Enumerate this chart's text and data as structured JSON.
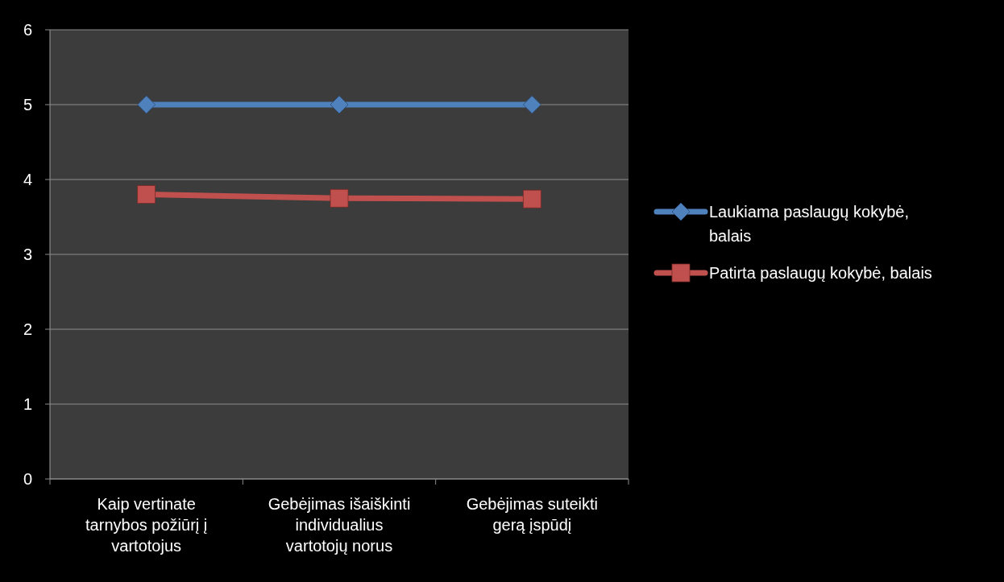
{
  "chart_data": {
    "type": "line",
    "categories": [
      "Kaip vertinate tarnybos požiūrį į vartotojus",
      "Gebėjimas išaiškinti individualius vartotojų norus",
      "Gebėjimas suteikti gerą įspūdį"
    ],
    "series": [
      {
        "name": "Laukiama paslaugų kokybė, balais",
        "color": "#4f81bd",
        "marker": "diamond",
        "values": [
          5,
          5,
          5
        ]
      },
      {
        "name": "Patirta paslaugų kokybė, balais",
        "color": "#c0504d",
        "marker": "square",
        "values": [
          3.8,
          3.75,
          3.74
        ]
      }
    ],
    "ylim": [
      0,
      6
    ],
    "yticks": [
      0,
      1,
      2,
      3,
      4,
      5,
      6
    ],
    "grid": "y",
    "legend": "right"
  }
}
